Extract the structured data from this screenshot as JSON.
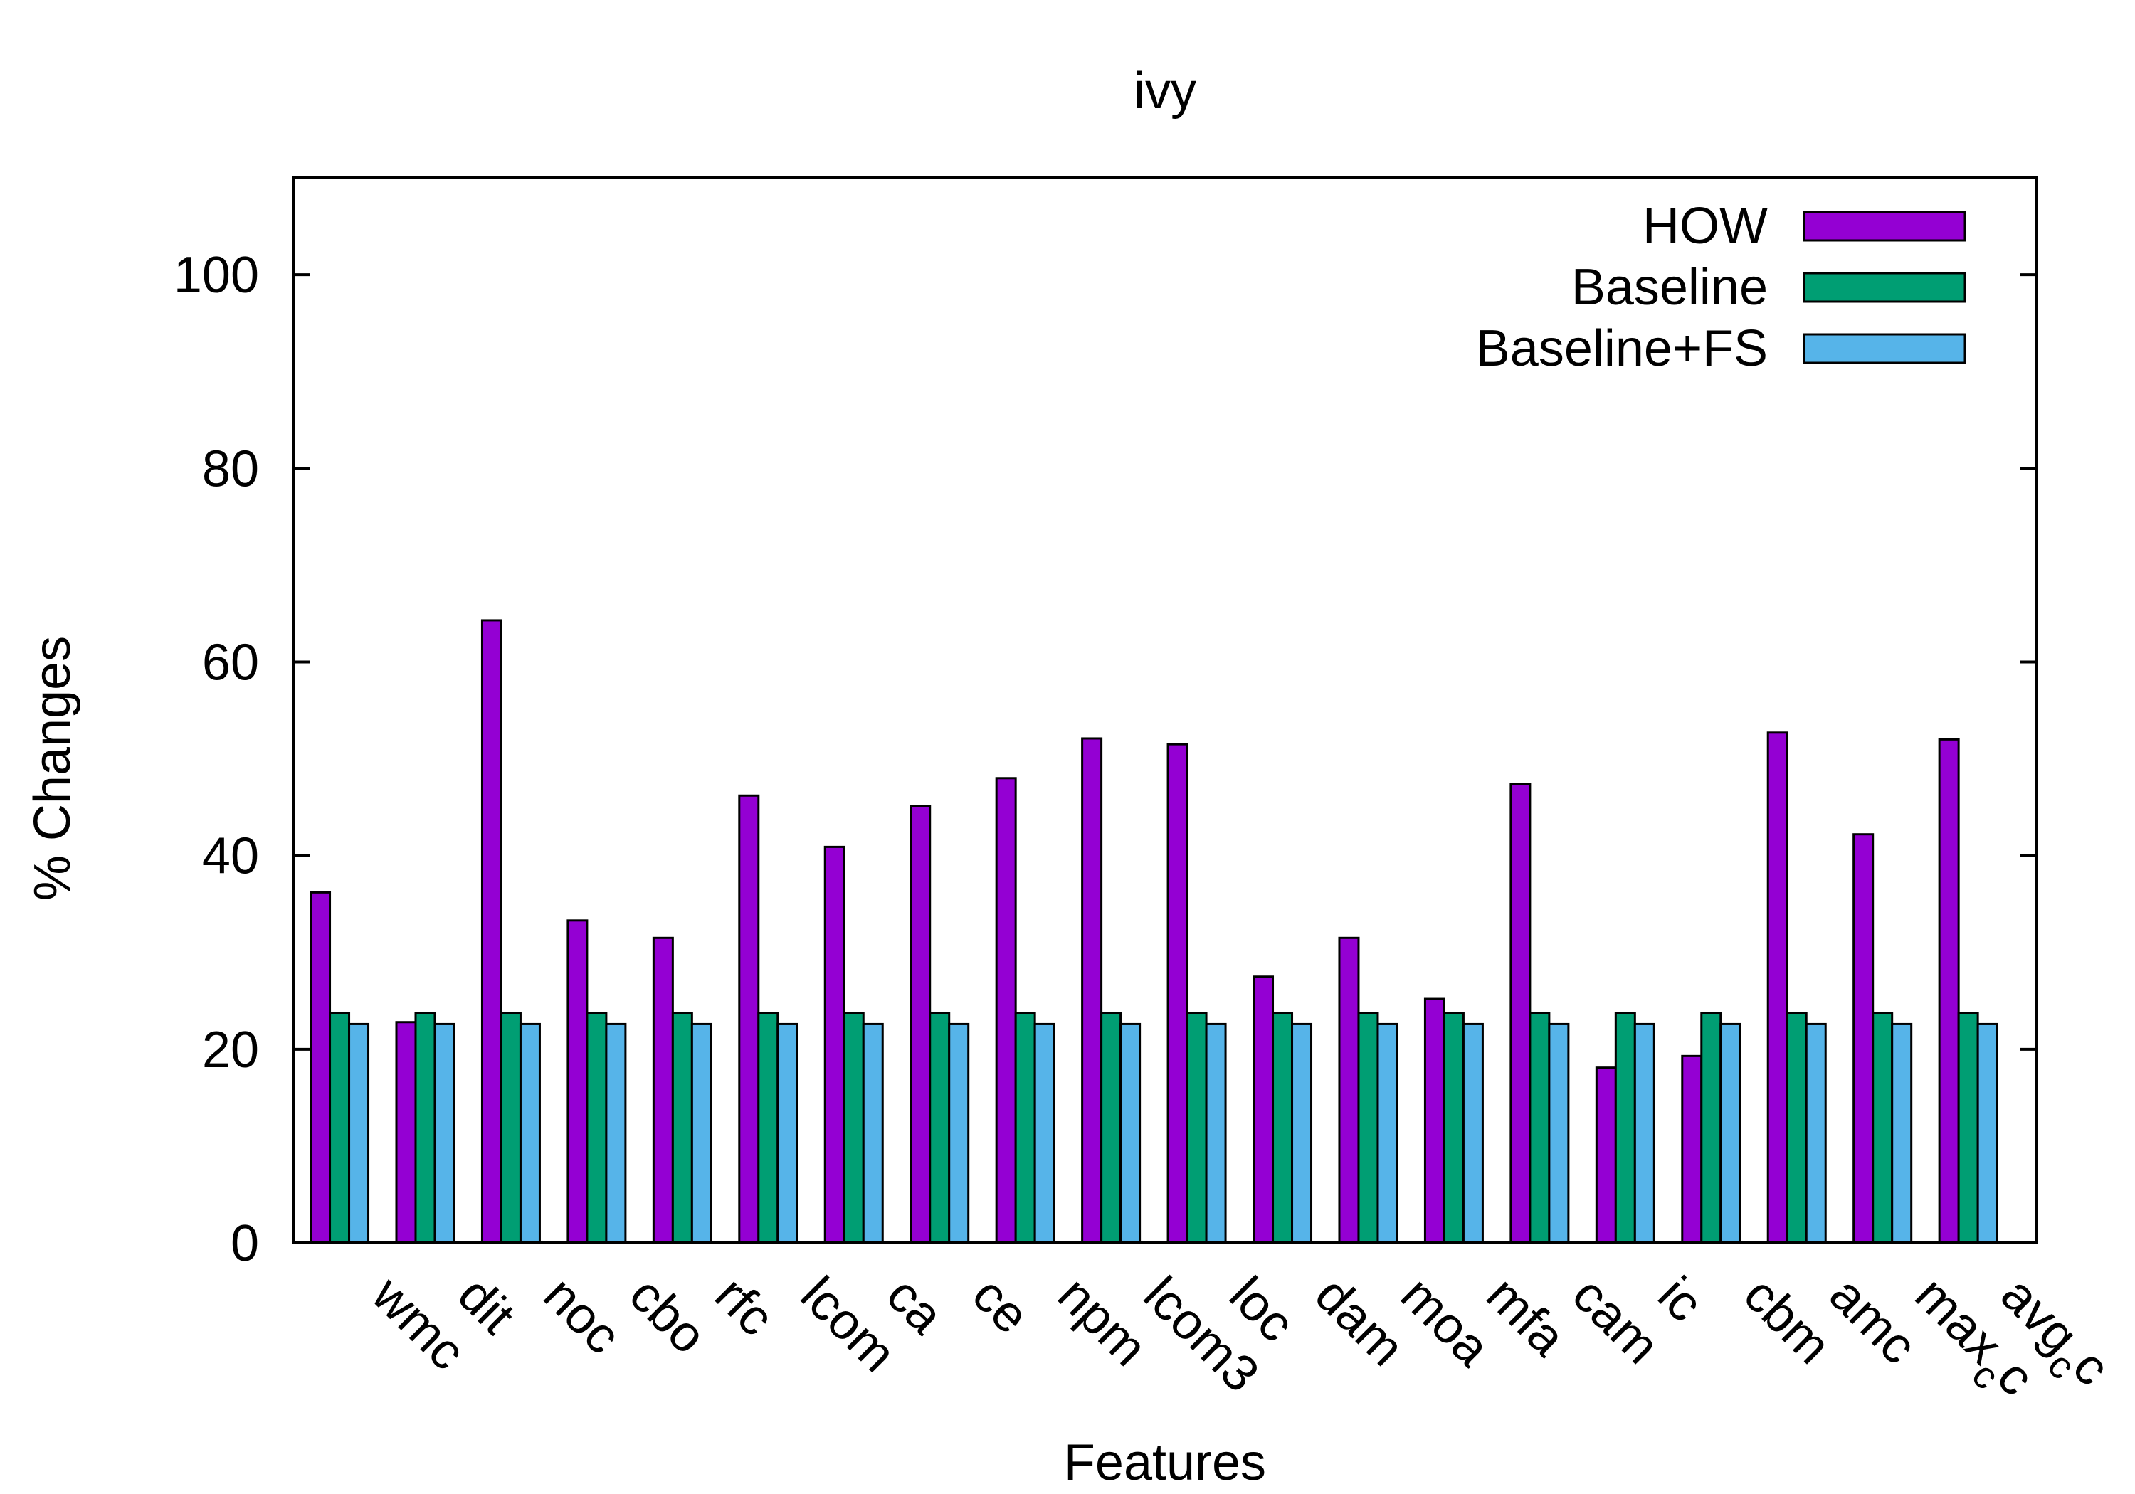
{
  "chart_data": {
    "type": "bar",
    "title": "ivy",
    "xlabel": "Features",
    "ylabel": "% Changes",
    "ylim": [
      0,
      110
    ],
    "yticks": [
      0,
      20,
      40,
      60,
      80,
      100
    ],
    "grid": false,
    "legend_position": "top-right",
    "categories": [
      "wmc",
      "dit",
      "noc",
      "cbo",
      "rfc",
      "lcom",
      "ca",
      "ce",
      "npm",
      "lcom3",
      "loc",
      "dam",
      "moa",
      "mfa",
      "cam",
      "ic",
      "cbm",
      "amc",
      "max_cc",
      "avg_cc"
    ],
    "category_labels": [
      {
        "base": "wmc"
      },
      {
        "base": "dit"
      },
      {
        "base": "noc"
      },
      {
        "base": "cbo"
      },
      {
        "base": "rfc"
      },
      {
        "base": "lcom"
      },
      {
        "base": "ca"
      },
      {
        "base": "ce"
      },
      {
        "base": "npm"
      },
      {
        "base": "lcom3"
      },
      {
        "base": "loc"
      },
      {
        "base": "dam"
      },
      {
        "base": "moa"
      },
      {
        "base": "mfa"
      },
      {
        "base": "cam"
      },
      {
        "base": "ic"
      },
      {
        "base": "cbm"
      },
      {
        "base": "amc"
      },
      {
        "base": "max",
        "sub": "c",
        "tail": "c"
      },
      {
        "base": "avg",
        "sub": "c",
        "tail": "c"
      }
    ],
    "series": [
      {
        "name": "HOW",
        "color": "#9400d3",
        "values": [
          36.2,
          22.8,
          64.3,
          33.3,
          31.5,
          46.2,
          40.9,
          45.1,
          48.0,
          52.1,
          51.5,
          27.5,
          31.5,
          25.2,
          47.4,
          18.1,
          19.3,
          52.7,
          42.2,
          52.0
        ]
      },
      {
        "name": "Baseline",
        "color": "#009e73",
        "values": [
          23.7,
          23.7,
          23.7,
          23.7,
          23.7,
          23.7,
          23.7,
          23.7,
          23.7,
          23.7,
          23.7,
          23.7,
          23.7,
          23.7,
          23.7,
          23.7,
          23.7,
          23.7,
          23.7,
          23.7
        ]
      },
      {
        "name": "Baseline+FS",
        "color": "#56b4e9",
        "values": [
          22.6,
          22.6,
          22.6,
          22.6,
          22.6,
          22.6,
          22.6,
          22.6,
          22.6,
          22.6,
          22.6,
          22.6,
          22.6,
          22.6,
          22.6,
          22.6,
          22.6,
          22.6,
          22.6,
          22.6
        ]
      }
    ]
  }
}
